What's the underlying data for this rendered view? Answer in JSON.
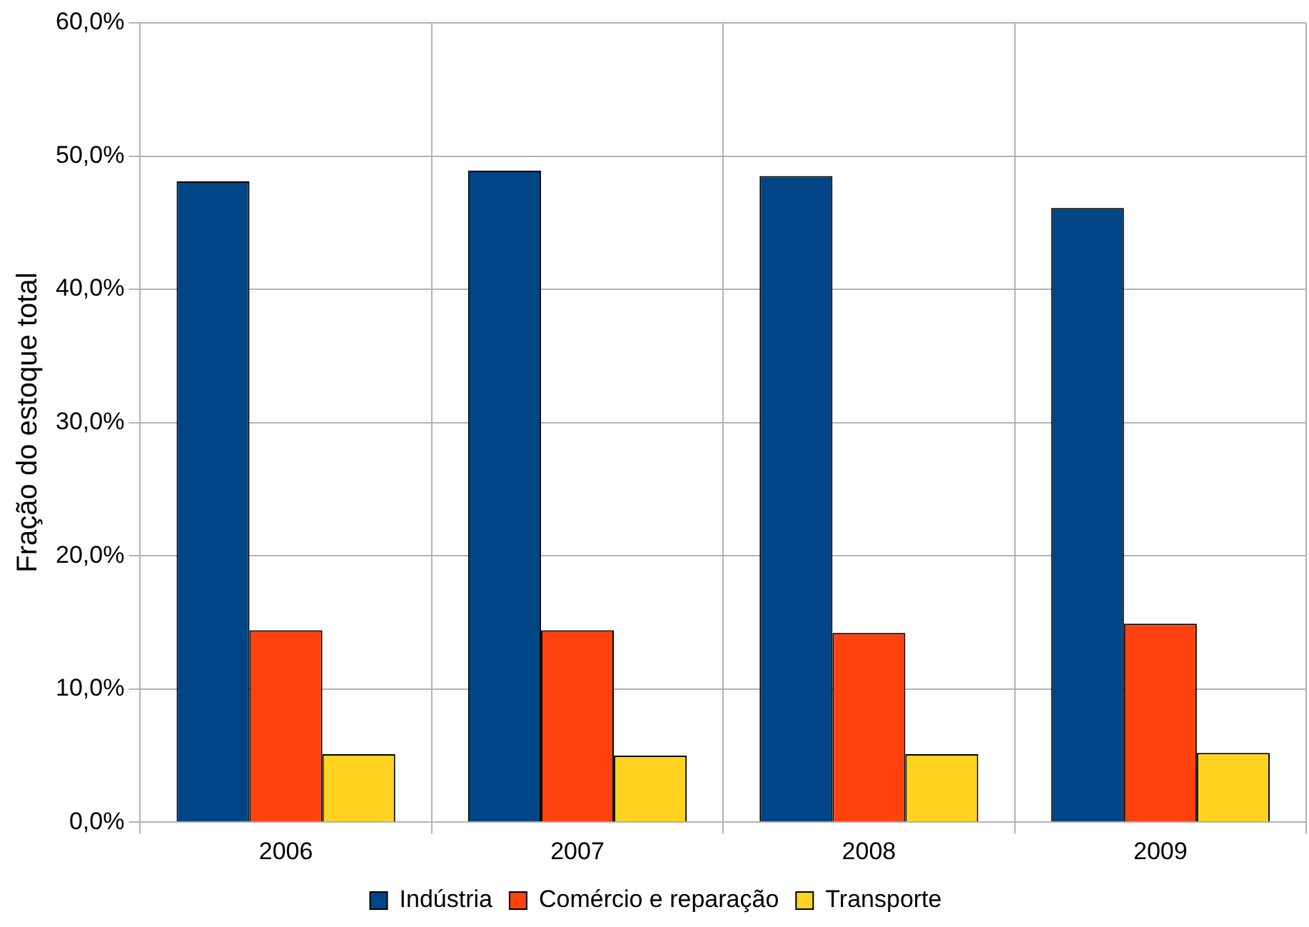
{
  "chart_data": {
    "type": "bar",
    "ylabel": "Fração do estoque total",
    "categories": [
      "2006",
      "2007",
      "2008",
      "2009"
    ],
    "series": [
      {
        "name": "Indústria",
        "color": "#004586",
        "values": [
          48.1,
          48.9,
          48.5,
          46.1
        ]
      },
      {
        "name": "Comércio e reparação",
        "color": "#ff420e",
        "values": [
          14.4,
          14.4,
          14.2,
          14.9
        ]
      },
      {
        "name": "Transporte",
        "color": "#ffd320",
        "values": [
          5.1,
          5.0,
          5.1,
          5.2
        ]
      }
    ],
    "ylim": [
      0,
      60
    ],
    "yticks": [
      {
        "value": 0,
        "label": "0,0%"
      },
      {
        "value": 10,
        "label": "10,0%"
      },
      {
        "value": 20,
        "label": "20,0%"
      },
      {
        "value": 30,
        "label": "30,0%"
      },
      {
        "value": 40,
        "label": "40,0%"
      },
      {
        "value": 50,
        "label": "50,0%"
      },
      {
        "value": 60,
        "label": "60,0%"
      }
    ],
    "grid": true,
    "legend": "bottom"
  }
}
